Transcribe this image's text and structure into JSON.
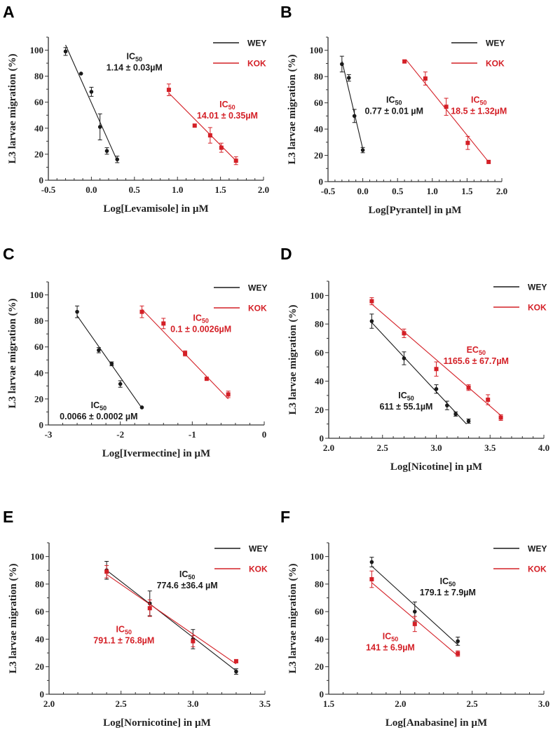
{
  "figure": {
    "ylabel": "L3 larvae migration (%)",
    "legend": [
      {
        "name": "WEY",
        "color": "#1a1a1a"
      },
      {
        "name": "KOK",
        "color": "#d42027"
      }
    ]
  },
  "chart_data": [
    {
      "panel": "A",
      "type": "scatter",
      "xlabel": "Log[Levamisole] in µM",
      "ylabel": "L3 larvae migration (%)",
      "xlim": [
        -0.5,
        2.0
      ],
      "ylim": [
        0,
        110
      ],
      "xticks": [
        -0.5,
        0.0,
        0.5,
        1.0,
        1.5,
        2.0
      ],
      "xtick_labels": [
        "-0.5",
        "0.0",
        "0.5",
        "1.0",
        "1.5",
        "2.0"
      ],
      "yticks": [
        0,
        20,
        40,
        60,
        80,
        100
      ],
      "legend": "top-right",
      "series": [
        {
          "name": "WEY",
          "color": "#1a1a1a",
          "marker": "circle",
          "x": [
            -0.3,
            -0.12,
            0.0,
            0.1,
            0.18,
            0.3
          ],
          "y": [
            99,
            82,
            68,
            41,
            22.5,
            16
          ],
          "err": [
            3,
            0,
            3.5,
            10,
            2.5,
            2.5
          ],
          "fit_x": [
            -0.3,
            0.3
          ],
          "fit_y": [
            104,
            15
          ]
        },
        {
          "name": "KOK",
          "color": "#d42027",
          "marker": "square",
          "x": [
            0.9,
            1.2,
            1.38,
            1.51,
            1.68
          ],
          "y": [
            69.5,
            42,
            34.5,
            25,
            15
          ],
          "err": [
            4.5,
            0,
            6,
            3.5,
            3
          ],
          "fit_x": [
            0.9,
            1.68
          ],
          "fit_y": [
            67,
            15
          ]
        }
      ],
      "annotations": [
        {
          "label": "IC",
          "sub": "50",
          "value": "1.14 ± 0.03µM",
          "color": "#1a1a1a",
          "x": 0.5,
          "y": 93
        },
        {
          "label": "IC",
          "sub": "50",
          "value": "14.01 ± 0.35µM",
          "color": "#d42027",
          "x": 1.58,
          "y": 56
        }
      ]
    },
    {
      "panel": "B",
      "type": "scatter",
      "xlabel": "Log[Pyrantel] in µM",
      "ylabel": "L3 larvae migration (%)",
      "xlim": [
        -0.5,
        2.0
      ],
      "ylim": [
        0,
        110
      ],
      "xticks": [
        -0.5,
        0.0,
        0.5,
        1.0,
        1.5,
        2.0
      ],
      "xtick_labels": [
        "-0.5",
        "0.0",
        "0.5",
        "1.0",
        "1.5",
        "2.0"
      ],
      "yticks": [
        0,
        20,
        40,
        60,
        80,
        100
      ],
      "legend": "top-right",
      "series": [
        {
          "name": "WEY",
          "color": "#1a1a1a",
          "marker": "circle",
          "x": [
            -0.3,
            -0.2,
            -0.12,
            0.0
          ],
          "y": [
            89.5,
            79,
            50,
            24
          ],
          "err": [
            6,
            2.5,
            5,
            2
          ],
          "fit_x": [
            -0.3,
            0.0
          ],
          "fit_y": [
            92,
            25
          ]
        },
        {
          "name": "KOK",
          "color": "#d42027",
          "marker": "square",
          "x": [
            0.6,
            0.9,
            1.2,
            1.51,
            1.81
          ],
          "y": [
            91.5,
            78.5,
            57,
            29.5,
            15
          ],
          "err": [
            1,
            5,
            6.5,
            5,
            0
          ],
          "fit_x": [
            0.62,
            1.81
          ],
          "fit_y": [
            93,
            15
          ]
        }
      ],
      "annotations": [
        {
          "label": "IC",
          "sub": "50",
          "value": "0.77 ± 0.01 µM",
          "color": "#1a1a1a",
          "x": 0.45,
          "y": 60
        },
        {
          "label": "IC",
          "sub": "50",
          "value": "18.5 ± 1.32µM",
          "color": "#d42027",
          "x": 1.67,
          "y": 60
        }
      ]
    },
    {
      "panel": "C",
      "type": "scatter",
      "xlabel": "Log[Ivermectine] in µM",
      "ylabel": "L3 larvae migration (%)",
      "xlim": [
        -3,
        0
      ],
      "ylim": [
        0,
        110
      ],
      "xticks": [
        -3,
        -2,
        -1,
        0
      ],
      "xtick_labels": [
        "-3",
        "-2",
        "-1",
        "0"
      ],
      "yticks": [
        0,
        20,
        40,
        60,
        80,
        100
      ],
      "legend": "top-right",
      "series": [
        {
          "name": "WEY",
          "color": "#1a1a1a",
          "marker": "circle",
          "x": [
            -2.6,
            -2.3,
            -2.12,
            -2.0,
            -1.7
          ],
          "y": [
            87,
            57.5,
            47,
            31.5,
            13.5
          ],
          "err": [
            4.5,
            2,
            1.5,
            2.5,
            0
          ],
          "fit_x": [
            -2.6,
            -1.7
          ],
          "fit_y": [
            84,
            13
          ]
        },
        {
          "name": "KOK",
          "color": "#d42027",
          "marker": "square",
          "x": [
            -1.7,
            -1.4,
            -1.1,
            -0.8,
            -0.5
          ],
          "y": [
            87,
            78,
            55,
            35.5,
            23.5
          ],
          "err": [
            4.5,
            4,
            2,
            0,
            2.5
          ],
          "fit_x": [
            -1.7,
            -0.5
          ],
          "fit_y": [
            89,
            20
          ]
        }
      ],
      "annotations": [
        {
          "label": "IC",
          "sub": "50",
          "value": "0.1 ± 0.0026µM",
          "color": "#d42027",
          "x": -0.88,
          "y": 80
        },
        {
          "label": "IC",
          "sub": "50",
          "value": "0.0066 ± 0.0002 µM",
          "color": "#1a1a1a",
          "x": -2.3,
          "y": 13
        }
      ]
    },
    {
      "panel": "D",
      "type": "scatter",
      "xlabel": "Log[Nicotine] in µM",
      "ylabel": "L3 larvae migration (%)",
      "xlim": [
        2.0,
        4.0
      ],
      "ylim": [
        0,
        110
      ],
      "xticks": [
        2.0,
        2.5,
        3.0,
        3.5,
        4.0
      ],
      "xtick_labels": [
        "2.0",
        "2.5",
        "3.0",
        "3.5",
        "4.0"
      ],
      "yticks": [
        0,
        20,
        40,
        60,
        80,
        100
      ],
      "legend": "top-right",
      "series": [
        {
          "name": "WEY",
          "color": "#1a1a1a",
          "marker": "circle",
          "x": [
            2.4,
            2.7,
            3.0,
            3.1,
            3.18,
            3.3
          ],
          "y": [
            82,
            56,
            34.5,
            23,
            17,
            12
          ],
          "err": [
            5,
            4.5,
            3,
            3,
            1.5,
            1.5
          ],
          "fit_x": [
            2.4,
            3.28
          ],
          "fit_y": [
            81,
            10
          ]
        },
        {
          "name": "KOK",
          "color": "#d42027",
          "marker": "square",
          "x": [
            2.4,
            2.7,
            3.0,
            3.3,
            3.48,
            3.6
          ],
          "y": [
            96,
            73.5,
            48.5,
            35.5,
            27,
            14.5
          ],
          "err": [
            2.5,
            3,
            5,
            2,
            3.5,
            2
          ],
          "fit_x": [
            2.4,
            3.6
          ],
          "fit_y": [
            94,
            16
          ]
        }
      ],
      "annotations": [
        {
          "label": "EC",
          "sub": "50",
          "value": "1165.6 ± 67.7µM",
          "color": "#d42027",
          "x": 3.37,
          "y": 60
        },
        {
          "label": "IC",
          "sub": "50",
          "value": "611 ± 55.1µM",
          "color": "#1a1a1a",
          "x": 2.72,
          "y": 28
        }
      ]
    },
    {
      "panel": "E",
      "type": "scatter",
      "xlabel": "Log[Nornicotine] in µM",
      "ylabel": "L3 larvae migration (%)",
      "xlim": [
        2.0,
        3.5
      ],
      "ylim": [
        0,
        110
      ],
      "xticks": [
        2.0,
        2.5,
        3.0,
        3.5
      ],
      "xtick_labels": [
        "2.0",
        "2.5",
        "3.0",
        "3.5"
      ],
      "yticks": [
        0,
        20,
        40,
        60,
        80,
        100
      ],
      "legend": "top-right",
      "series": [
        {
          "name": "WEY",
          "color": "#1a1a1a",
          "marker": "circle",
          "x": [
            2.4,
            2.7,
            3.0,
            3.3
          ],
          "y": [
            90,
            66,
            40,
            16.5
          ],
          "err": [
            6.5,
            9,
            7,
            2
          ],
          "fit_x": [
            2.4,
            3.3
          ],
          "fit_y": [
            90,
            17
          ]
        },
        {
          "name": "KOK",
          "color": "#d42027",
          "marker": "square",
          "x": [
            2.4,
            2.7,
            3.0,
            3.3
          ],
          "y": [
            89,
            62.5,
            38.5,
            24
          ],
          "err": [
            4.5,
            6,
            4,
            1
          ],
          "fit_x": [
            2.4,
            3.3
          ],
          "fit_y": [
            87,
            22
          ]
        }
      ],
      "annotations": [
        {
          "label": "IC",
          "sub": "50",
          "value": "774.6 ±36.4 µM",
          "color": "#1a1a1a",
          "x": 2.96,
          "y": 85
        },
        {
          "label": "IC",
          "sub": "50",
          "value": "791.1 ± 76.8µM",
          "color": "#d42027",
          "x": 2.52,
          "y": 45
        }
      ]
    },
    {
      "panel": "F",
      "type": "scatter",
      "xlabel": "Log[Anabasine] in µM",
      "ylabel": "L3 larvae migration (%)",
      "xlim": [
        1.5,
        3.0
      ],
      "ylim": [
        0,
        110
      ],
      "xticks": [
        1.5,
        2.0,
        2.5,
        3.0
      ],
      "xtick_labels": [
        "1.5",
        "2.0",
        "2.5",
        "3.0"
      ],
      "yticks": [
        0,
        20,
        40,
        60,
        80,
        100
      ],
      "legend": "top-right",
      "series": [
        {
          "name": "WEY",
          "color": "#1a1a1a",
          "marker": "circle",
          "x": [
            1.8,
            2.1,
            2.4
          ],
          "y": [
            96,
            60,
            38.5
          ],
          "err": [
            3.5,
            7,
            3
          ],
          "fit_x": [
            1.8,
            2.4
          ],
          "fit_y": [
            93,
            36
          ]
        },
        {
          "name": "KOK",
          "color": "#d42027",
          "marker": "square",
          "x": [
            1.8,
            2.1,
            2.4
          ],
          "y": [
            83.5,
            51,
            29.5
          ],
          "err": [
            6,
            5.5,
            2
          ],
          "fit_x": [
            1.8,
            2.4
          ],
          "fit_y": [
            81,
            28
          ]
        }
      ],
      "annotations": [
        {
          "label": "IC",
          "sub": "50",
          "value": "179.1 ± 7.9µM",
          "color": "#1a1a1a",
          "x": 2.33,
          "y": 80
        },
        {
          "label": "IC",
          "sub": "50",
          "value": "141 ± 6.9µM",
          "color": "#d42027",
          "x": 1.93,
          "y": 40
        }
      ]
    }
  ]
}
